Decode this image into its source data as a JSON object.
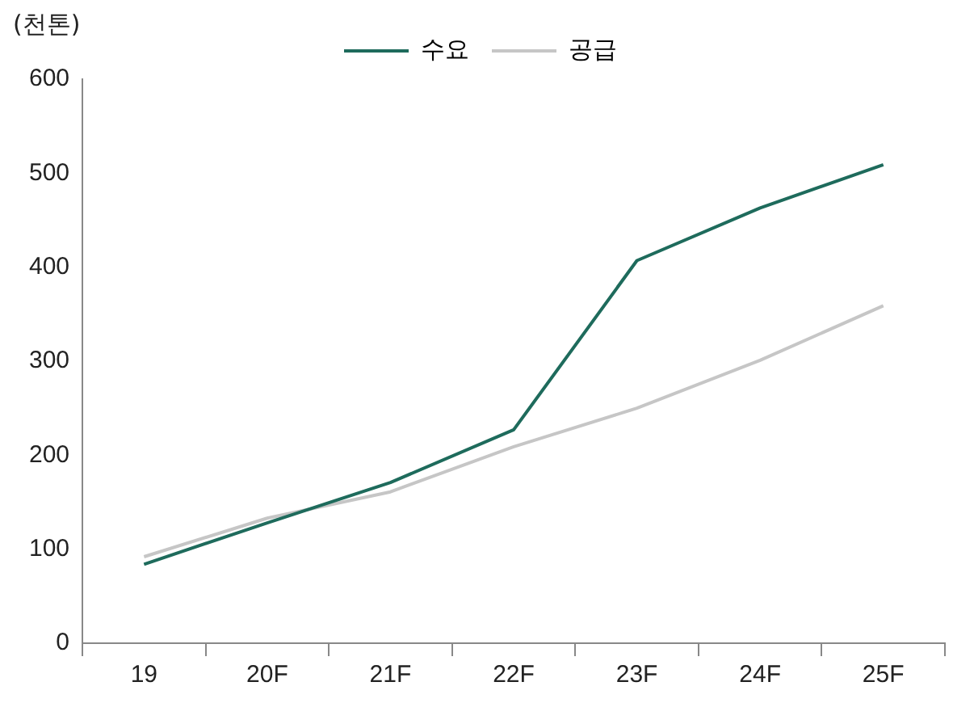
{
  "chart_data": {
    "type": "line",
    "ylabel": "(천톤)",
    "categories": [
      "19",
      "20F",
      "21F",
      "22F",
      "23F",
      "24F",
      "25F"
    ],
    "series": [
      {
        "name": "수요",
        "color": "#1e6b5c",
        "values": [
          84,
          128,
          171,
          227,
          407,
          463,
          509
        ]
      },
      {
        "name": "공급",
        "color": "#c6c6c6",
        "values": [
          92,
          133,
          161,
          209,
          250,
          301,
          359
        ]
      }
    ],
    "ylim": [
      0,
      600
    ],
    "yticks": [
      0,
      100,
      200,
      300,
      400,
      500,
      600
    ],
    "grid": false,
    "legend": "top",
    "marker": "none",
    "line_style": "solid"
  }
}
